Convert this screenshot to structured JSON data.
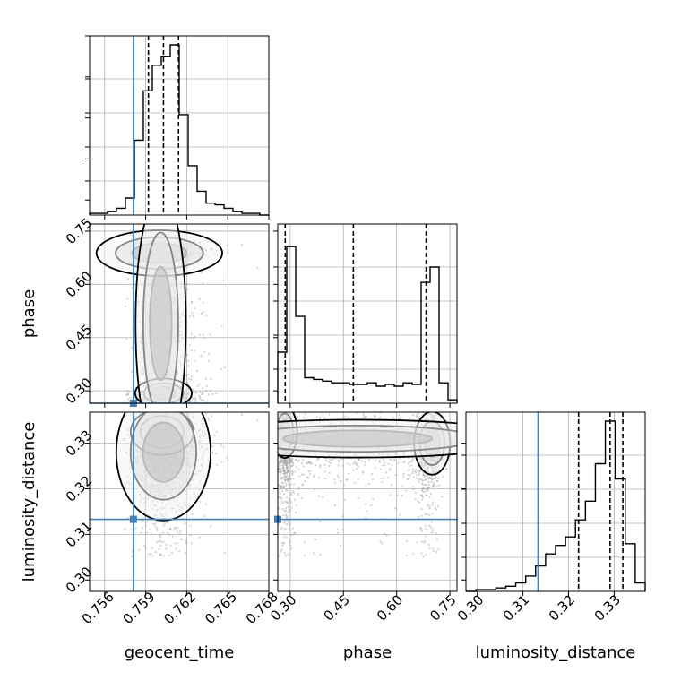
{
  "chart_data": {
    "type": "corner",
    "parameters": [
      "geocent_time",
      "phase",
      "luminosity_distance"
    ],
    "labels": {
      "geocent_time": "geocent_time",
      "phase": "phase",
      "luminosity_distance": "luminosity_distance"
    },
    "ranges": {
      "geocent_time": [
        0.7549,
        0.768
      ],
      "phase": [
        0.265,
        0.77
      ],
      "luminosity_distance": [
        0.2975,
        0.3368
      ]
    },
    "ticks": {
      "geocent_time": [
        "0.756",
        "0.759",
        "0.762",
        "0.765",
        "0.768"
      ],
      "phase": [
        "0.30",
        "0.45",
        "0.60",
        "0.75"
      ],
      "luminosity_distance": [
        "0.30",
        "0.31",
        "0.32",
        "0.33"
      ]
    },
    "truths": {
      "geocent_time": 0.7581,
      "phase": 0.265,
      "luminosity_distance": 0.3133
    },
    "quantiles": {
      "geocent_time": [
        0.7592,
        0.7603,
        0.7614
      ],
      "phase": [
        0.286,
        0.478,
        0.683
      ],
      "luminosity_distance": [
        0.3222,
        0.3291,
        0.3319
      ]
    },
    "histograms": {
      "geocent_time": [
        0.01,
        0.01,
        0.02,
        0.04,
        0.1,
        0.44,
        0.73,
        0.88,
        0.93,
        1.0,
        0.59,
        0.29,
        0.14,
        0.07,
        0.06,
        0.04,
        0.02,
        0.01,
        0.01,
        0.0
      ],
      "phase": [
        0.3,
        0.92,
        0.51,
        0.15,
        0.14,
        0.13,
        0.12,
        0.12,
        0.11,
        0.11,
        0.12,
        0.1,
        0.11,
        0.1,
        0.12,
        0.11,
        0.71,
        0.8,
        0.12,
        0.02
      ],
      "luminosity_distance": [
        0.0,
        0.01,
        0.01,
        0.02,
        0.03,
        0.05,
        0.09,
        0.15,
        0.22,
        0.27,
        0.32,
        0.42,
        0.53,
        0.75,
        1.0,
        0.66,
        0.28,
        0.05
      ]
    },
    "grid": true,
    "truth_color": "#4682b4",
    "contour_color": "#000000",
    "hist_color": "#000000",
    "quantile_color": "#000000",
    "point_color": "#9e9e9e"
  }
}
